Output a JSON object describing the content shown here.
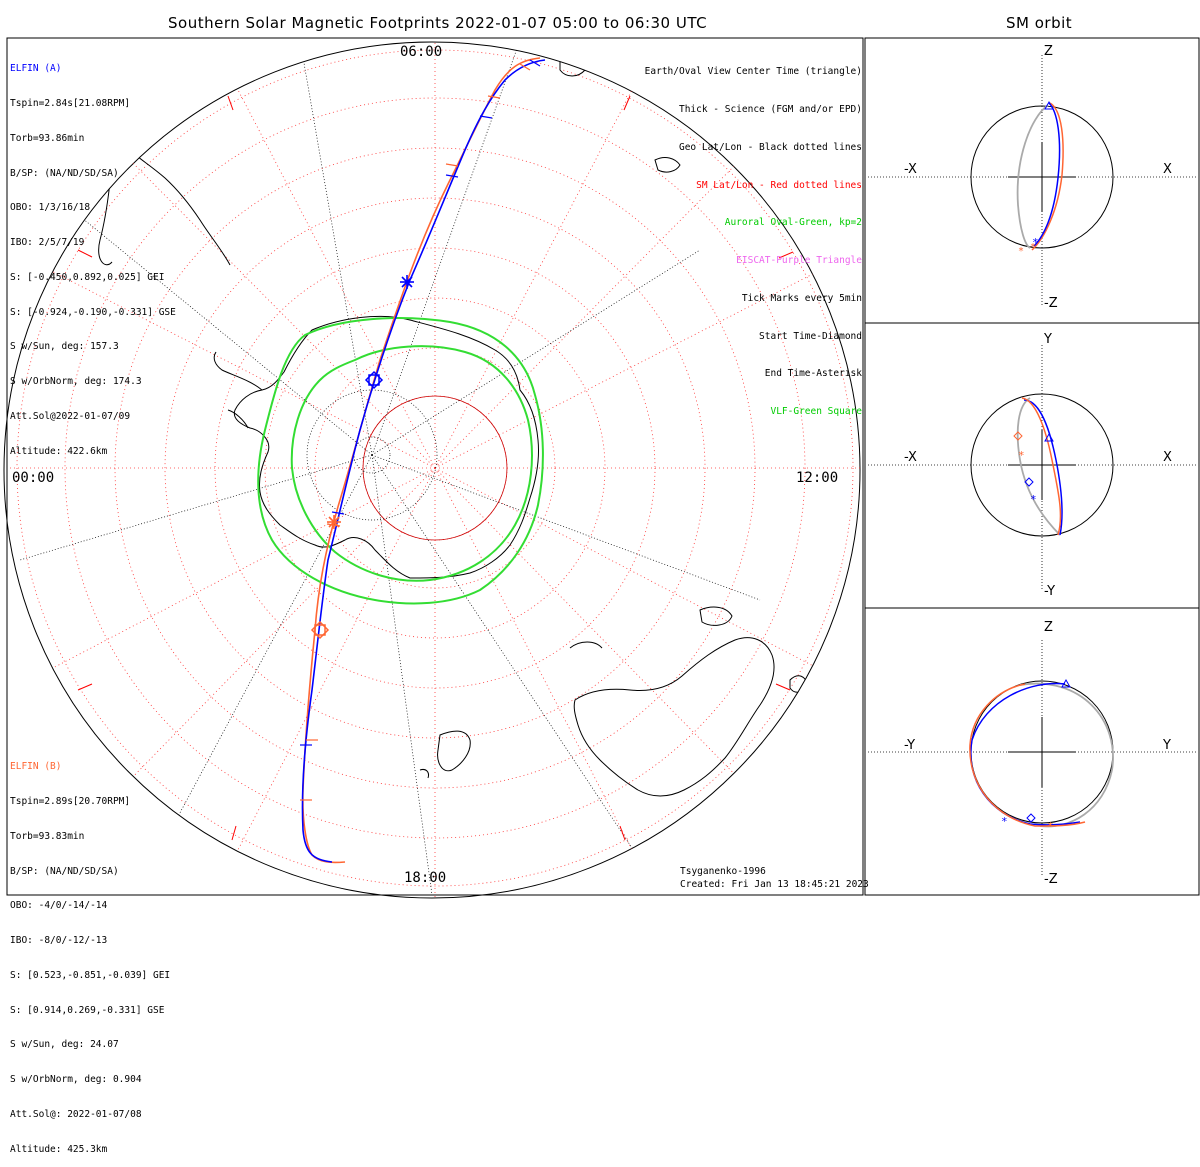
{
  "header": {
    "title": "Southern Solar Magnetic Footprints 2022-01-07 05:00 to 06:30 UTC",
    "orbit_title": "SM orbit"
  },
  "map": {
    "hour_labels": {
      "top": "06:00",
      "left": "00:00",
      "right": "12:00",
      "bottom": "18:00"
    }
  },
  "elfin_a": {
    "color": "#0000ff",
    "lines": [
      "ELFIN (A)",
      "Tspin=2.84s[21.08RPM]",
      "Torb=93.86min",
      "B/SP: (NA/ND/SD/SA)",
      "OBO: 1/3/16/18",
      "IBO: 2/5/7/19",
      "S: [-0.450,0.892,0.025] GEI",
      "S: [-0.924,-0.190,-0.331] GSE",
      "S w/Sun, deg: 157.3",
      "S w/OrbNorm, deg: 174.3",
      "Att.Sol@2022-01-07/09",
      "Altitude: 422.6km"
    ]
  },
  "elfin_b": {
    "color": "#ff6633",
    "lines": [
      "ELFIN (B)",
      "Tspin=2.89s[20.70RPM]",
      "Torb=93.83min",
      "B/SP: (NA/ND/SD/SA)",
      "OBO: -4/0/-14/-14",
      "IBO: -8/0/-12/-13",
      "S: [0.523,-0.851,-0.039] GEI",
      "S: [0.914,0.269,-0.331] GSE",
      "S w/Sun, deg: 24.07",
      "S w/OrbNorm, deg: 0.904",
      "Att.Sol@: 2022-01-07/08",
      "Altitude: 425.3km"
    ]
  },
  "legend": [
    {
      "text": "Earth/Oval View Center Time (triangle)",
      "color": "#000000"
    },
    {
      "text": "Thick - Science (FGM and/or EPD)",
      "color": "#000000"
    },
    {
      "text": "Geo Lat/Lon - Black dotted lines",
      "color": "#000000"
    },
    {
      "text": "SM Lat/Lon - Red dotted lines",
      "color": "#ff0000"
    },
    {
      "text": "Auroral Oval-Green, kp=2",
      "color": "#00cc00"
    },
    {
      "text": "EISCAT-Purple Triangle",
      "color": "#ee66ee"
    },
    {
      "text": "Tick Marks every 5min",
      "color": "#000000"
    },
    {
      "text": "Start Time-Diamond",
      "color": "#000000"
    },
    {
      "text": "End Time-Asterisk",
      "color": "#000000"
    },
    {
      "text": "VLF-Green Square",
      "color": "#00cc00"
    }
  ],
  "footer": {
    "model": "Tsyganenko-1996",
    "created": "Created: Fri Jan 13 18:45:21 2023"
  },
  "orbit_panels": [
    {
      "top": "Z",
      "bottom": "-Z",
      "left": "-X",
      "right": "X"
    },
    {
      "top": "Y",
      "bottom": "-Y",
      "left": "-X",
      "right": "X"
    },
    {
      "top": "Z",
      "bottom": "-Z",
      "left": "-Y",
      "right": "Y"
    }
  ]
}
